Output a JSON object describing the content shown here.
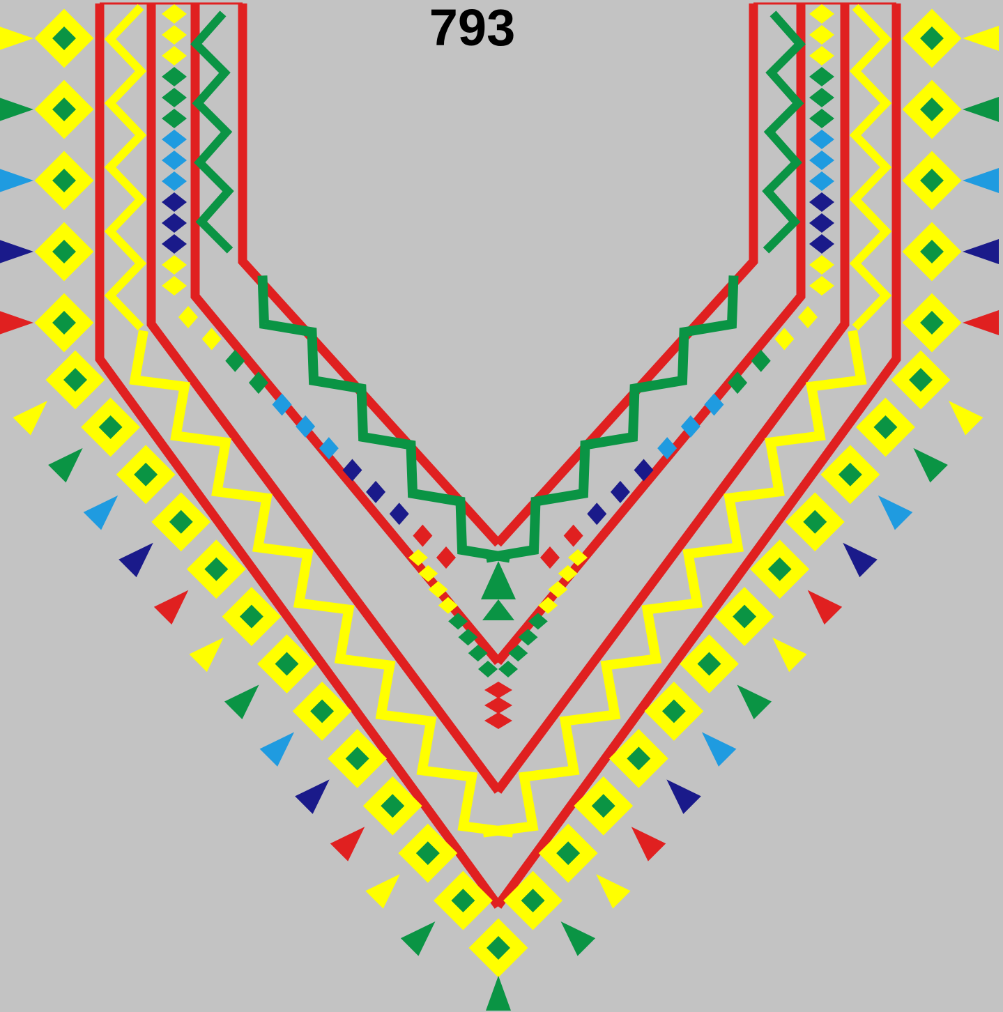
{
  "design": {
    "number": "793"
  },
  "palette": {
    "background": "#c3c3c3",
    "red": "#e02020",
    "yellow": "#ffff00",
    "green": "#0a9444",
    "light_blue": "#1f9be0",
    "navy": "#1a1a8a"
  },
  "motifs": [
    "v-neck-outline",
    "zigzag-band",
    "diamond-chain",
    "tassel"
  ]
}
